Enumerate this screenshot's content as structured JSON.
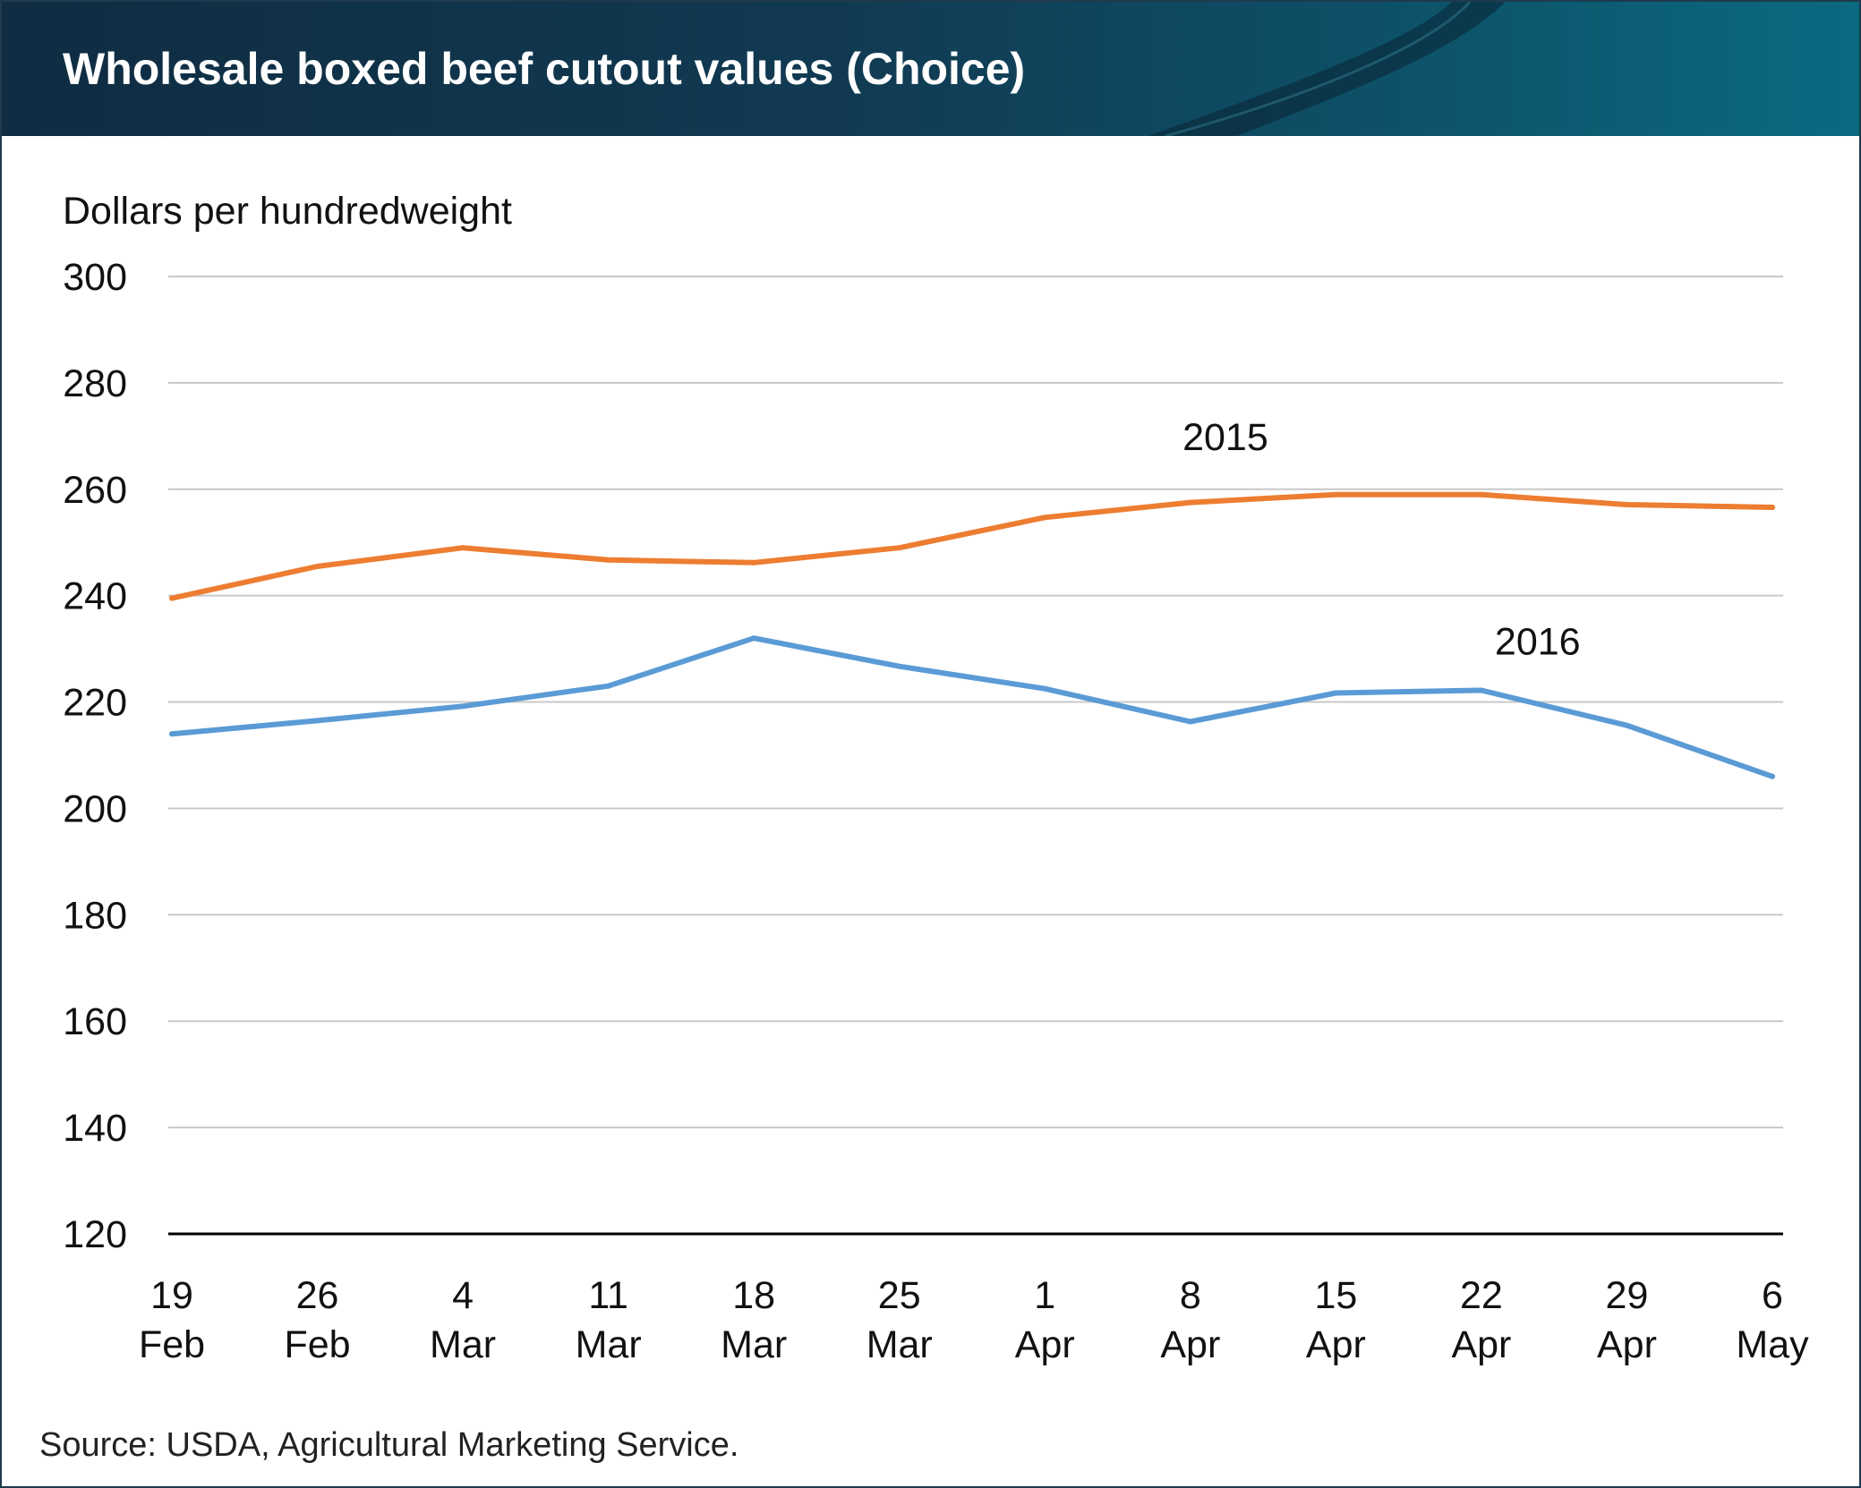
{
  "header": {
    "title": "Wholesale boxed beef cutout values (Choice)"
  },
  "footer": {
    "source": "Source: USDA, Agricultural Marketing Service."
  },
  "chart_data": {
    "type": "line",
    "title": "Wholesale boxed beef cutout values (Choice)",
    "ylabel": "Dollars per hundredweight",
    "xlabel": "",
    "ylim": [
      120,
      300
    ],
    "yticks": [
      120,
      140,
      160,
      180,
      200,
      220,
      240,
      260,
      280,
      300
    ],
    "grid": true,
    "categories": [
      {
        "day": "19",
        "month": "Feb"
      },
      {
        "day": "26",
        "month": "Feb"
      },
      {
        "day": "4",
        "month": "Mar"
      },
      {
        "day": "11",
        "month": "Mar"
      },
      {
        "day": "18",
        "month": "Mar"
      },
      {
        "day": "25",
        "month": "Mar"
      },
      {
        "day": "1",
        "month": "Apr"
      },
      {
        "day": "8",
        "month": "Apr"
      },
      {
        "day": "15",
        "month": "Apr"
      },
      {
        "day": "22",
        "month": "Apr"
      },
      {
        "day": "29",
        "month": "Apr"
      },
      {
        "day": "6",
        "month": "May"
      }
    ],
    "series": [
      {
        "name": "2015",
        "color": "#ed7d31",
        "values": [
          239.5,
          245.5,
          249.0,
          246.7,
          246.2,
          249.0,
          254.7,
          257.5,
          259.0,
          259.0,
          257.1,
          256.6
        ]
      },
      {
        "name": "2016",
        "color": "#5b9bd5",
        "values": [
          214.0,
          216.5,
          219.2,
          223.0,
          232.0,
          226.7,
          222.5,
          216.3,
          221.7,
          222.2,
          215.6,
          206.0
        ]
      }
    ]
  }
}
